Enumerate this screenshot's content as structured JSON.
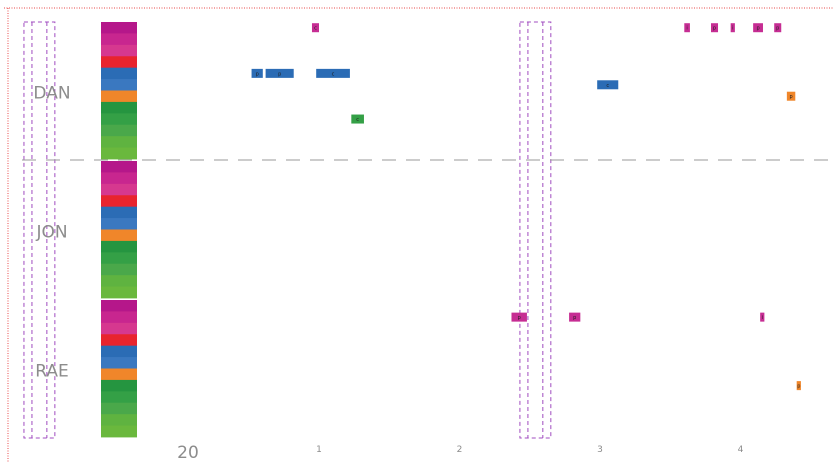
{
  "chart_data": {
    "type": "scatter",
    "title": "",
    "xlabel": "",
    "ylabel": "",
    "xlim": [
      0.0,
      4.55
    ],
    "x_ticks": [
      "1",
      "2",
      "3",
      "4"
    ],
    "x_tick_values": [
      1,
      2,
      3,
      4
    ],
    "bottom_label": "20",
    "groups": [
      "DAN",
      "JON",
      "RAE"
    ],
    "lane_colors": [
      "#b5178a",
      "#c8268f",
      "#d6388f",
      "#e8242e",
      "#2b6cb5",
      "#3a78c0",
      "#f0862a",
      "#259540",
      "#34a046",
      "#4aa84a",
      "#5fb340",
      "#6ab83d"
    ],
    "marker_colors": {
      "magenta": "#c62d93",
      "blue": "#2b6cb5",
      "orange": "#f0862a",
      "green": "#34a046"
    },
    "accent_color": "#e84a4a",
    "divider_color": "#9a9a9a",
    "dashed_box_color": "#a04cc0",
    "dashed_box_x_ranges": [
      [
        -1.1,
        -0.88
      ],
      [
        2.43,
        2.65
      ]
    ],
    "events": [
      {
        "group": "DAN",
        "lane": 0,
        "x": 0.95,
        "x_end": 1.0,
        "color": "magenta",
        "mark": "c"
      },
      {
        "group": "DAN",
        "lane": 4,
        "x": 0.52,
        "x_end": 0.6,
        "color": "blue",
        "mark": "p"
      },
      {
        "group": "DAN",
        "lane": 4,
        "x": 0.62,
        "x_end": 0.82,
        "color": "blue",
        "mark": "p"
      },
      {
        "group": "DAN",
        "lane": 4,
        "x": 0.98,
        "x_end": 1.22,
        "color": "blue",
        "mark": "c"
      },
      {
        "group": "DAN",
        "lane": 5,
        "x": 2.98,
        "x_end": 3.13,
        "color": "blue",
        "mark": "c"
      },
      {
        "group": "DAN",
        "lane": 6,
        "x": 4.33,
        "x_end": 4.39,
        "color": "orange",
        "mark": "p"
      },
      {
        "group": "DAN",
        "lane": 8,
        "x": 1.23,
        "x_end": 1.32,
        "color": "green",
        "mark": "c"
      },
      {
        "group": "DAN",
        "lane": 0,
        "x": 3.6,
        "x_end": 3.64,
        "color": "magenta",
        "mark": "i"
      },
      {
        "group": "DAN",
        "lane": 0,
        "x": 3.79,
        "x_end": 3.84,
        "color": "magenta",
        "mark": "p"
      },
      {
        "group": "DAN",
        "lane": 0,
        "x": 3.93,
        "x_end": 3.96,
        "color": "magenta",
        "mark": "i"
      },
      {
        "group": "DAN",
        "lane": 0,
        "x": 4.09,
        "x_end": 4.16,
        "color": "magenta",
        "mark": "p"
      },
      {
        "group": "DAN",
        "lane": 0,
        "x": 4.24,
        "x_end": 4.29,
        "color": "magenta",
        "mark": "p"
      },
      {
        "group": "RAE",
        "lane": 1,
        "x": 2.37,
        "x_end": 2.48,
        "color": "magenta",
        "mark": "p"
      },
      {
        "group": "RAE",
        "lane": 1,
        "x": 2.78,
        "x_end": 2.86,
        "color": "magenta",
        "mark": "p"
      },
      {
        "group": "RAE",
        "lane": 1,
        "x": 4.14,
        "x_end": 4.17,
        "color": "magenta",
        "mark": "i"
      },
      {
        "group": "RAE",
        "lane": 7,
        "x": 4.4,
        "x_end": 4.43,
        "color": "orange",
        "mark": "p"
      }
    ]
  }
}
